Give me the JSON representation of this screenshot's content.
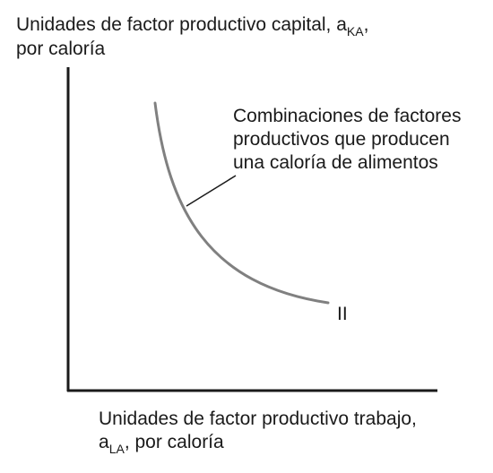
{
  "y_axis_label": {
    "line1_prefix": "Unidades de factor productivo capital, a",
    "line1_sub": "KA",
    "line1_suffix": ",",
    "line2": "por caloría"
  },
  "x_axis_label": {
    "line1": "Unidades de factor productivo trabajo,",
    "line2_prefix": "a",
    "line2_sub": "LA",
    "line2_suffix": ", por caloría"
  },
  "annotation": {
    "line1": "Combinaciones de factores",
    "line2": "productivos que producen",
    "line3": "una caloría de alimentos"
  },
  "curve_label": "II",
  "colors": {
    "axis": "#1a1a1a",
    "curve": "#808080",
    "pointer": "#1a1a1a"
  }
}
